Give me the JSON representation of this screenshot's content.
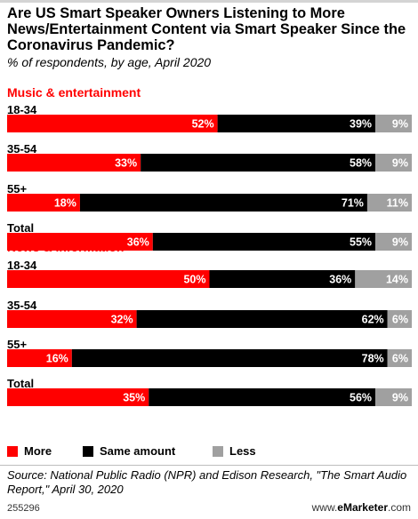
{
  "title": "Are US Smart Speaker Owners Listening to More News/Entertainment Content via Smart Speaker Since the Coronavirus Pandemic?",
  "subtitle": "% of respondents, by age, April 2020",
  "colors": {
    "more": "#ff0000",
    "same": "#000000",
    "less": "#a0a0a0",
    "section_title": "#ff0000"
  },
  "legend": [
    {
      "label": "More",
      "color": "#ff0000"
    },
    {
      "label": "Same amount",
      "color": "#000000"
    },
    {
      "label": "Less",
      "color": "#a0a0a0"
    }
  ],
  "source": "Source: National Public Radio (NPR) and Edison Research, \"The Smart Audio Report,\" April 30, 2020",
  "footer": {
    "id": "255296",
    "brand_prefix": "www.",
    "brand_name": "eMarketer",
    "brand_suffix": ".com"
  },
  "chart_data": {
    "type": "bar",
    "stacked": true,
    "orientation": "horizontal",
    "unit": "%",
    "series_names": [
      "More",
      "Same amount",
      "Less"
    ],
    "groups": [
      {
        "name": "Music & entertainment",
        "categories": [
          "18-34",
          "35-54",
          "55+",
          "Total"
        ],
        "series": [
          {
            "name": "More",
            "values": [
              52,
              33,
              18,
              36
            ]
          },
          {
            "name": "Same amount",
            "values": [
              39,
              58,
              71,
              55
            ]
          },
          {
            "name": "Less",
            "values": [
              9,
              9,
              11,
              9
            ]
          }
        ]
      },
      {
        "name": "News & information",
        "categories": [
          "18-34",
          "35-54",
          "55+",
          "Total"
        ],
        "series": [
          {
            "name": "More",
            "values": [
              50,
              32,
              16,
              35
            ]
          },
          {
            "name": "Same amount",
            "values": [
              36,
              62,
              78,
              56
            ]
          },
          {
            "name": "Less",
            "values": [
              14,
              6,
              6,
              9
            ]
          }
        ]
      }
    ]
  }
}
